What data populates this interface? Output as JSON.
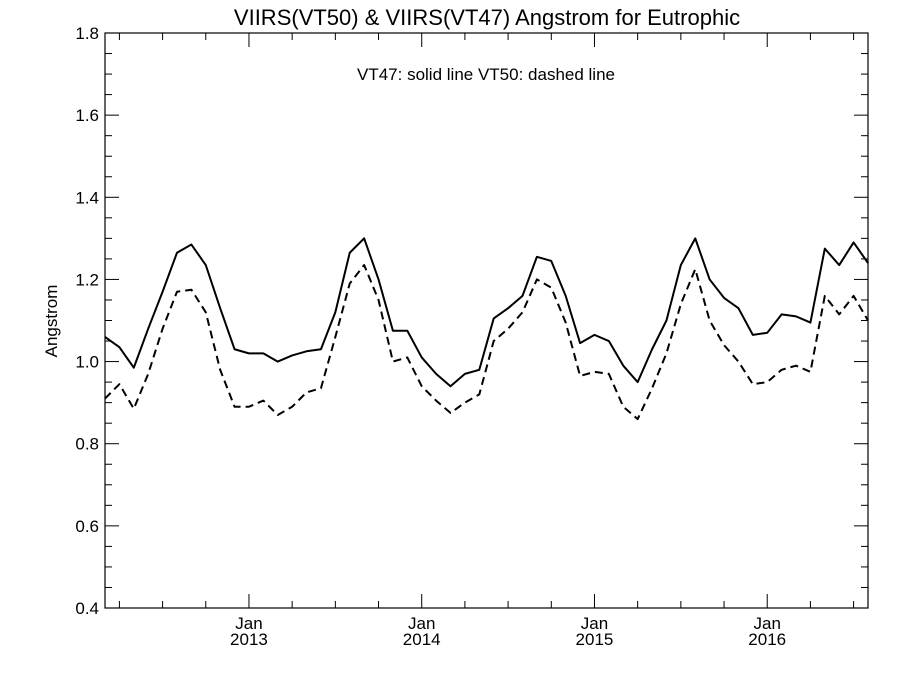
{
  "chart_data": {
    "type": "line",
    "title": "VIIRS(VT50) & VIIRS(VT47)  Angstrom for Eutrophic",
    "annotation": "VT47: solid line   VT50: dashed line",
    "ylabel": "Angstrom",
    "xlabel": "",
    "ylim": [
      0.4,
      1.8
    ],
    "yticks": [
      0.4,
      0.6,
      0.8,
      1.0,
      1.2,
      1.4,
      1.6,
      1.8
    ],
    "ytick_labels": [
      "0.4",
      "0.6",
      "0.8",
      "1.0",
      "1.2",
      "1.4",
      "1.6",
      "1.8"
    ],
    "xlim": [
      "2012-03-01",
      "2016-08-01"
    ],
    "xticks": [
      {
        "date": "2013-01-01",
        "month": "Jan",
        "year": "2013"
      },
      {
        "date": "2014-01-01",
        "month": "Jan",
        "year": "2014"
      },
      {
        "date": "2015-01-01",
        "month": "Jan",
        "year": "2015"
      },
      {
        "date": "2016-01-01",
        "month": "Jan",
        "year": "2016"
      }
    ],
    "x": [
      "2012-03",
      "2012-04",
      "2012-05",
      "2012-06",
      "2012-07",
      "2012-08",
      "2012-09",
      "2012-10",
      "2012-11",
      "2012-12",
      "2013-01",
      "2013-02",
      "2013-03",
      "2013-04",
      "2013-05",
      "2013-06",
      "2013-07",
      "2013-08",
      "2013-09",
      "2013-10",
      "2013-11",
      "2013-12",
      "2014-01",
      "2014-02",
      "2014-03",
      "2014-04",
      "2014-05",
      "2014-06",
      "2014-07",
      "2014-08",
      "2014-09",
      "2014-10",
      "2014-11",
      "2014-12",
      "2015-01",
      "2015-02",
      "2015-03",
      "2015-04",
      "2015-05",
      "2015-06",
      "2015-07",
      "2015-08",
      "2015-09",
      "2015-10",
      "2015-11",
      "2015-12",
      "2016-01",
      "2016-02",
      "2016-03",
      "2016-04",
      "2016-05",
      "2016-06",
      "2016-07",
      "2016-08"
    ],
    "series": [
      {
        "name": "VT47",
        "style": "solid",
        "values": [
          1.06,
          1.035,
          0.985,
          1.08,
          1.17,
          1.265,
          1.285,
          1.235,
          1.13,
          1.03,
          1.02,
          1.02,
          1.0,
          1.015,
          1.025,
          1.03,
          1.12,
          1.265,
          1.3,
          1.2,
          1.075,
          1.075,
          1.01,
          0.97,
          0.94,
          0.97,
          0.98,
          1.105,
          1.13,
          1.16,
          1.255,
          1.245,
          1.16,
          1.045,
          1.065,
          1.05,
          0.99,
          0.95,
          1.03,
          1.1,
          1.235,
          1.3,
          1.2,
          1.155,
          1.13,
          1.065,
          1.07,
          1.115,
          1.11,
          1.095,
          1.275,
          1.235,
          1.29,
          1.24
        ]
      },
      {
        "name": "VT50",
        "style": "dashed",
        "values": [
          0.91,
          0.945,
          0.885,
          0.97,
          1.08,
          1.17,
          1.175,
          1.12,
          0.98,
          0.89,
          0.89,
          0.905,
          0.87,
          0.89,
          0.925,
          0.935,
          1.06,
          1.19,
          1.235,
          1.15,
          1.0,
          1.01,
          0.94,
          0.905,
          0.875,
          0.9,
          0.92,
          1.05,
          1.08,
          1.12,
          1.2,
          1.18,
          1.095,
          0.965,
          0.975,
          0.97,
          0.89,
          0.86,
          0.935,
          1.02,
          1.14,
          1.225,
          1.1,
          1.04,
          1.0,
          0.945,
          0.95,
          0.98,
          0.99,
          0.975,
          1.16,
          1.115,
          1.16,
          1.1
        ]
      }
    ]
  }
}
